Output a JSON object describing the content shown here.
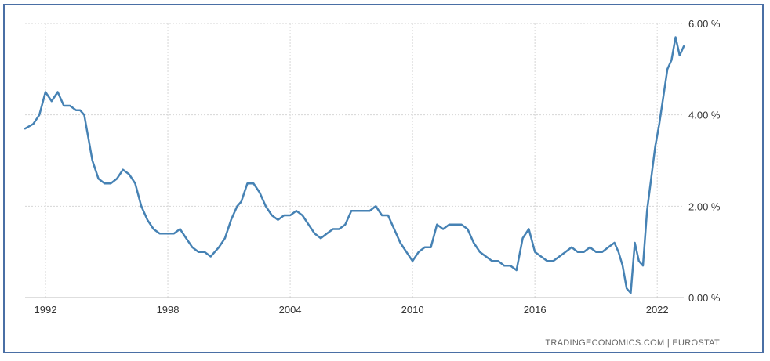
{
  "source_text": "TRADINGECONOMICS.COM  |  EUROSTAT",
  "colors": {
    "line": "#4682b4",
    "frame": "#4a6fa5",
    "grid": "#d6d6d6"
  },
  "chart_data": {
    "type": "line",
    "title": "",
    "xlabel": "",
    "ylabel": "",
    "x_ticks": [
      "1992",
      "1998",
      "2004",
      "2010",
      "2016",
      "2022"
    ],
    "y_ticks": [
      "0.00 %",
      "2.00 %",
      "4.00 %",
      "6.00 %"
    ],
    "xlim": [
      1991.0,
      2023.3
    ],
    "ylim": [
      0,
      6
    ],
    "grid": true,
    "series": [
      {
        "x": [
          1991.0,
          1991.4,
          1991.7,
          1992.0,
          1992.3,
          1992.6,
          1992.9,
          1993.2,
          1993.5,
          1993.7,
          1993.9,
          1994.1,
          1994.3,
          1994.6,
          1994.9,
          1995.2,
          1995.5,
          1995.8,
          1996.1,
          1996.4,
          1996.7,
          1997.0,
          1997.3,
          1997.6,
          1998.0,
          1998.3,
          1998.6,
          1998.9,
          1999.2,
          1999.5,
          1999.8,
          2000.1,
          2000.3,
          2000.5,
          2000.8,
          2001.1,
          2001.4,
          2001.6,
          2001.9,
          2002.2,
          2002.5,
          2002.8,
          2003.1,
          2003.4,
          2003.7,
          2004.0,
          2004.3,
          2004.6,
          2004.9,
          2005.2,
          2005.5,
          2005.8,
          2006.1,
          2006.4,
          2006.7,
          2007.0,
          2007.3,
          2007.6,
          2007.9,
          2008.2,
          2008.5,
          2008.8,
          2009.1,
          2009.4,
          2009.7,
          2010.0,
          2010.3,
          2010.6,
          2010.9,
          2011.2,
          2011.5,
          2011.8,
          2012.1,
          2012.4,
          2012.7,
          2013.0,
          2013.3,
          2013.6,
          2013.9,
          2014.2,
          2014.5,
          2014.8,
          2015.1,
          2015.4,
          2015.7,
          2016.0,
          2016.3,
          2016.6,
          2016.9,
          2017.2,
          2017.5,
          2017.8,
          2018.1,
          2018.4,
          2018.7,
          2019.0,
          2019.3,
          2019.6,
          2019.9,
          2020.1,
          2020.3,
          2020.5,
          2020.7,
          2020.9,
          2021.1,
          2021.3,
          2021.5,
          2021.7,
          2021.9,
          2022.1,
          2022.3,
          2022.5,
          2022.7,
          2022.9,
          2023.1,
          2023.3
        ],
        "y": [
          3.7,
          3.8,
          4.0,
          4.5,
          4.3,
          4.5,
          4.2,
          4.2,
          4.1,
          4.1,
          4.0,
          3.5,
          3.0,
          2.6,
          2.5,
          2.5,
          2.6,
          2.8,
          2.7,
          2.5,
          2.0,
          1.7,
          1.5,
          1.4,
          1.4,
          1.4,
          1.5,
          1.3,
          1.1,
          1.0,
          1.0,
          0.9,
          1.0,
          1.1,
          1.3,
          1.7,
          2.0,
          2.1,
          2.5,
          2.5,
          2.3,
          2.0,
          1.8,
          1.7,
          1.8,
          1.8,
          1.9,
          1.8,
          1.6,
          1.4,
          1.3,
          1.4,
          1.5,
          1.5,
          1.6,
          1.9,
          1.9,
          1.9,
          1.9,
          2.0,
          1.8,
          1.8,
          1.5,
          1.2,
          1.0,
          0.8,
          1.0,
          1.1,
          1.1,
          1.6,
          1.5,
          1.6,
          1.6,
          1.6,
          1.5,
          1.2,
          1.0,
          0.9,
          0.8,
          0.8,
          0.7,
          0.7,
          0.6,
          1.3,
          1.5,
          1.0,
          0.9,
          0.8,
          0.8,
          0.9,
          1.0,
          1.1,
          1.0,
          1.0,
          1.1,
          1.0,
          1.0,
          1.1,
          1.2,
          1.0,
          0.7,
          0.2,
          0.1,
          1.2,
          0.8,
          0.7,
          1.9,
          2.6,
          3.3,
          3.8,
          4.4,
          5.0,
          5.2,
          5.7,
          5.3,
          5.5
        ]
      }
    ]
  }
}
